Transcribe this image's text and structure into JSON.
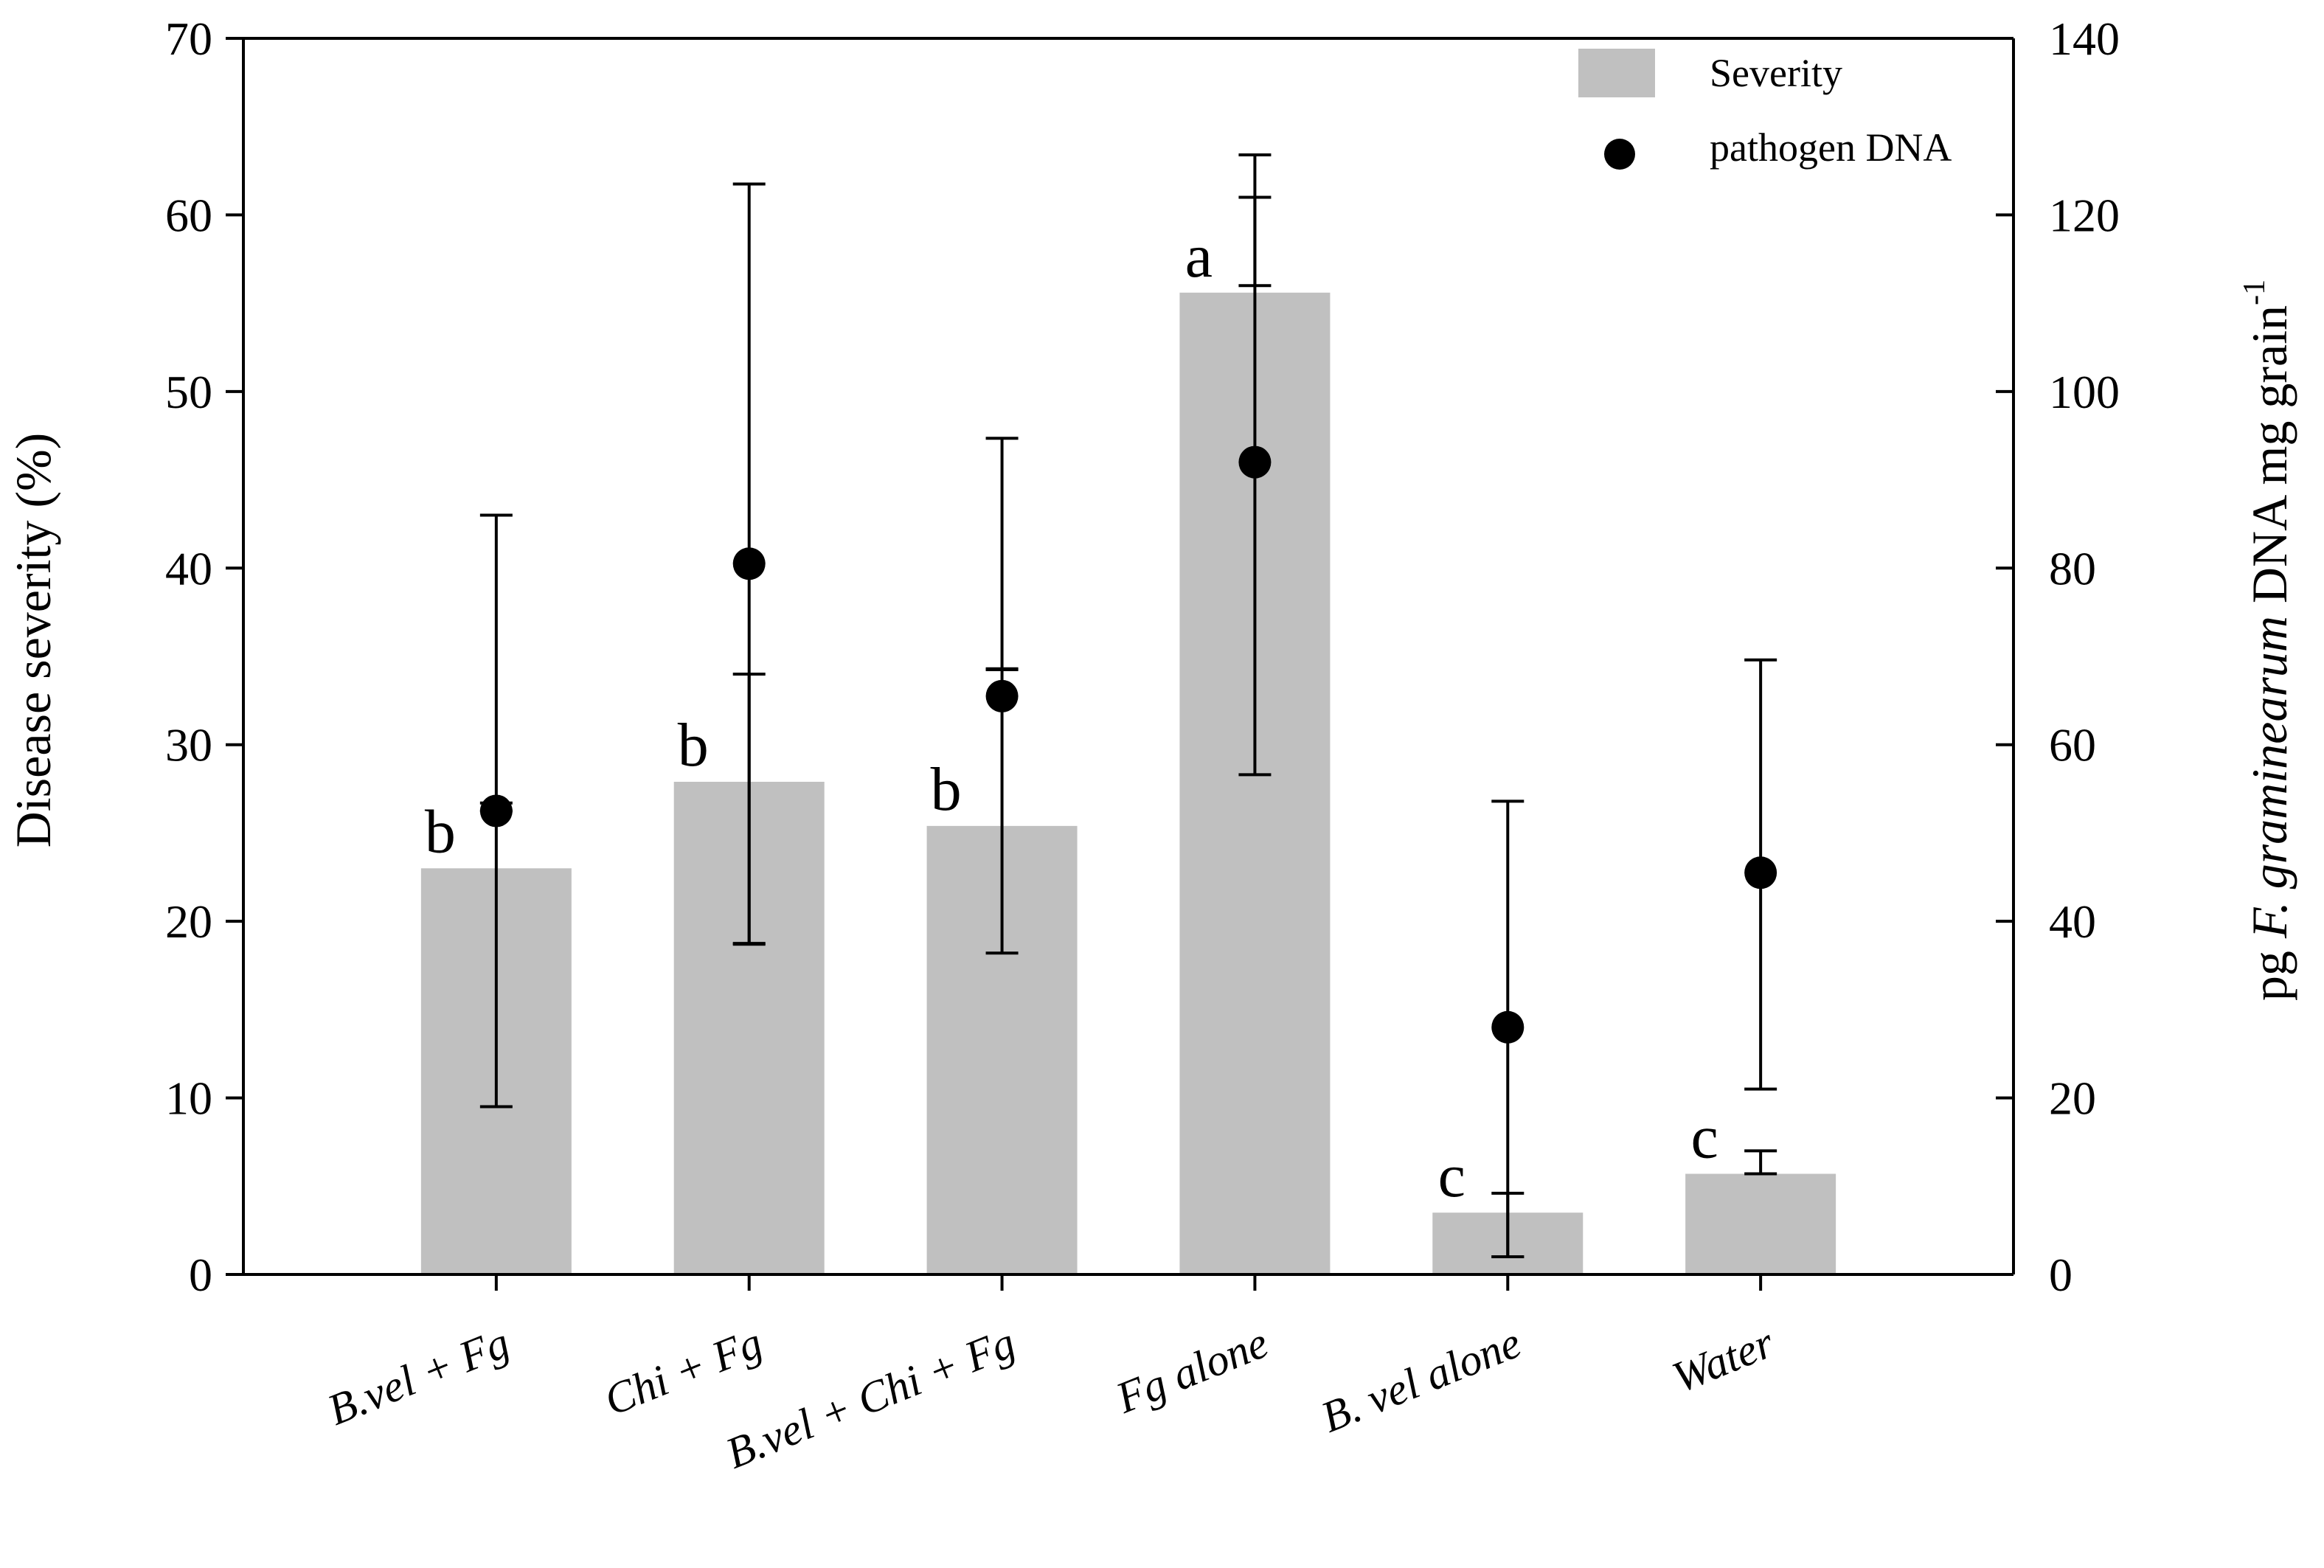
{
  "chart_data": {
    "type": "bar",
    "categories": [
      "B.vel + Fg",
      "Chi + Fg",
      "B.vel + Chi + Fg",
      "Fg alone",
      "B. vel alone",
      "Water"
    ],
    "series": [
      {
        "name": "Severity",
        "axis": "left",
        "kind": "bar",
        "color": "#c0c0c0",
        "values": [
          23.0,
          27.9,
          25.4,
          55.6,
          3.5,
          5.7
        ],
        "err_low": [
          9.5,
          18.7,
          18.2,
          28.3,
          1.0,
          5.7
        ],
        "err_high": [
          26.7,
          34.0,
          34.3,
          61.0,
          4.6,
          7.0
        ]
      },
      {
        "name": "pathogen DNA",
        "axis": "right",
        "kind": "point",
        "color": "#000000",
        "values": [
          52.5,
          80.5,
          65.5,
          92.0,
          28.0,
          45.5
        ],
        "err_low": [
          52.5,
          37.5,
          68.5,
          112.0,
          2.0,
          21.0
        ],
        "err_high": [
          86.0,
          123.5,
          94.7,
          126.8,
          53.6,
          69.6
        ]
      }
    ],
    "letters": [
      "b",
      "b",
      "b",
      "a",
      "c",
      "c"
    ],
    "ylabel_left": "Disease severity (%)",
    "ylim_left": [
      0,
      70
    ],
    "yticks_left": [
      0,
      10,
      20,
      30,
      40,
      50,
      60,
      70
    ],
    "ylabel_right_prefix": "pg ",
    "ylabel_right_italic": "F. graminearum",
    "ylabel_right_suffix": " DNA mg grain",
    "ylabel_right_sup": "-1",
    "ylim_right": [
      0,
      140
    ],
    "yticks_right": [
      0,
      20,
      40,
      60,
      80,
      100,
      120,
      140
    ],
    "legend_position": "top-right",
    "grid": false
  }
}
